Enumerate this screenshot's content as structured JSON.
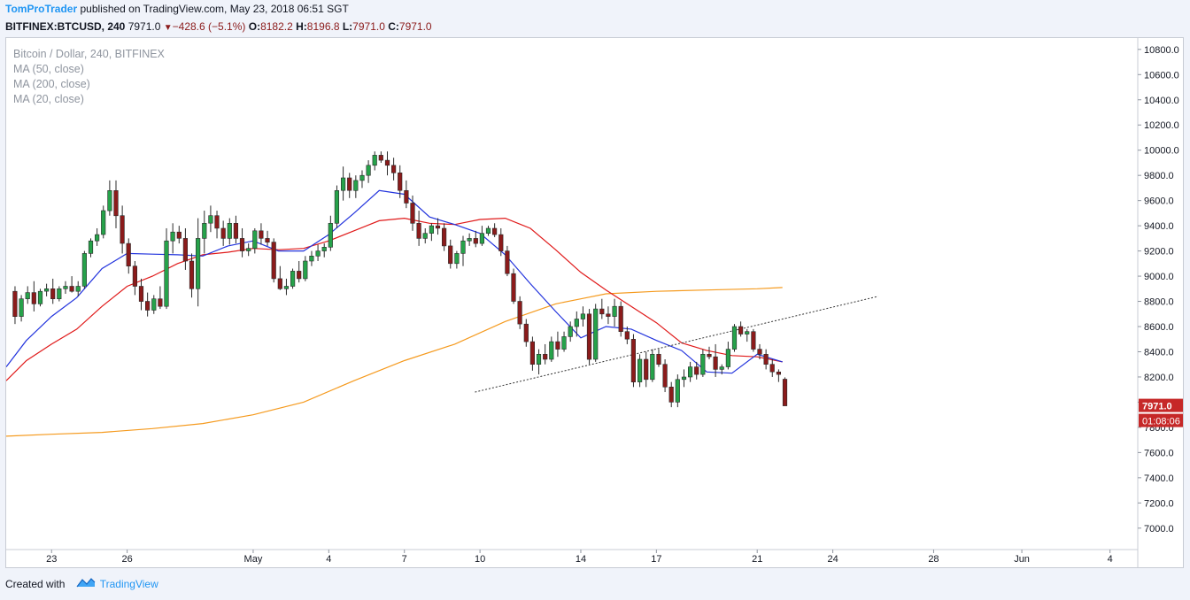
{
  "header": {
    "author": "TomProTrader",
    "published_text": " published on TradingView.com, May 23, 2018 06:51 SGT"
  },
  "quote": {
    "symbol": "BITFINEX:BTCUSD, 240",
    "last": "7971.0",
    "change": "−428.6 (−5.1%)",
    "o_label": "O:",
    "o_value": "8182.2",
    "h_label": "H:",
    "h_value": "8196.8",
    "l_label": "L:",
    "l_value": "7971.0",
    "c_label": "C:",
    "c_value": "7971.0",
    "down_arrow_icon": "triangle-down-icon"
  },
  "legend": {
    "title": "Bitcoin / Dollar, 240, BITFINEX",
    "ma50": "MA (50, close)",
    "ma200": "MA (200, close)",
    "ma20": "MA (20, close)"
  },
  "badges": {
    "price": "7971.0",
    "countdown": "01:08:06"
  },
  "footer": {
    "created_with": "Created with",
    "brand": "TradingView",
    "logo_icon": "tradingview-cloud-icon"
  },
  "colors": {
    "up": "#26a24a",
    "down": "#8b1b1b",
    "ma20": "#2233dd",
    "ma50": "#e01a1a",
    "ma200": "#f59a1e",
    "badge": "#c62828",
    "brand": "#2196f3"
  },
  "chart_data": {
    "type": "candlestick",
    "title": "Bitcoin / Dollar, 240, BITFINEX",
    "x_range": [
      -0.3,
      44.6
    ],
    "y_range": [
      6830,
      10890
    ],
    "y_ticks": [
      7000,
      7200,
      7400,
      7600,
      7800,
      8000,
      8200,
      8400,
      8600,
      8800,
      9000,
      9200,
      9400,
      9600,
      9800,
      10000,
      10200,
      10400,
      10600,
      10800
    ],
    "y_tick_labels": [
      "7000.0",
      "7200.0",
      "7400.0",
      "7600.0",
      "7800.0",
      "8000.0",
      "8200.0",
      "8400.0",
      "8600.0",
      "8800.0",
      "9000.0",
      "9200.0",
      "9400.0",
      "9600.0",
      "9800.0",
      "10000.0",
      "10200.0",
      "10400.0",
      "10600.0",
      "10800.0"
    ],
    "x_ticks": [
      {
        "label": "23",
        "x": 1.5
      },
      {
        "label": "26",
        "x": 4.5
      },
      {
        "label": "May",
        "x": 9.5
      },
      {
        "label": "4",
        "x": 12.5
      },
      {
        "label": "7",
        "x": 15.5
      },
      {
        "label": "10",
        "x": 18.5
      },
      {
        "label": "14",
        "x": 22.5
      },
      {
        "label": "17",
        "x": 25.5
      },
      {
        "label": "21",
        "x": 29.5
      },
      {
        "label": "24",
        "x": 32.5
      },
      {
        "label": "28",
        "x": 36.5
      },
      {
        "label": "Jun",
        "x": 40
      },
      {
        "label": "4",
        "x": 43.5
      }
    ],
    "candles": [
      [
        8880,
        8920,
        8620,
        8680
      ],
      [
        8680,
        8850,
        8640,
        8820
      ],
      [
        8820,
        8920,
        8780,
        8870
      ],
      [
        8870,
        8960,
        8720,
        8780
      ],
      [
        8780,
        8900,
        8760,
        8880
      ],
      [
        8880,
        8940,
        8840,
        8900
      ],
      [
        8900,
        8980,
        8780,
        8820
      ],
      [
        8820,
        8920,
        8800,
        8900
      ],
      [
        8900,
        8960,
        8860,
        8920
      ],
      [
        8920,
        9000,
        8870,
        8880
      ],
      [
        8880,
        8960,
        8840,
        8920
      ],
      [
        8920,
        9200,
        8900,
        9180
      ],
      [
        9180,
        9300,
        9150,
        9280
      ],
      [
        9280,
        9380,
        9240,
        9330
      ],
      [
        9330,
        9560,
        9300,
        9520
      ],
      [
        9520,
        9760,
        9480,
        9680
      ],
      [
        9680,
        9760,
        9380,
        9480
      ],
      [
        9480,
        9560,
        9180,
        9260
      ],
      [
        9260,
        9300,
        9020,
        9080
      ],
      [
        9080,
        9120,
        8850,
        8920
      ],
      [
        8920,
        8980,
        8730,
        8800
      ],
      [
        8800,
        8870,
        8680,
        8730
      ],
      [
        8730,
        8850,
        8700,
        8820
      ],
      [
        8820,
        8920,
        8740,
        8760
      ],
      [
        8760,
        9380,
        8740,
        9280
      ],
      [
        9280,
        9420,
        9180,
        9350
      ],
      [
        9350,
        9400,
        9260,
        9300
      ],
      [
        9300,
        9380,
        9050,
        9120
      ],
      [
        9120,
        9180,
        8830,
        8900
      ],
      [
        8900,
        9460,
        8760,
        9300
      ],
      [
        9300,
        9520,
        9180,
        9420
      ],
      [
        9420,
        9560,
        9350,
        9480
      ],
      [
        9480,
        9520,
        9300,
        9380
      ],
      [
        9380,
        9440,
        9240,
        9300
      ],
      [
        9300,
        9460,
        9250,
        9420
      ],
      [
        9420,
        9480,
        9260,
        9300
      ],
      [
        9300,
        9380,
        9150,
        9200
      ],
      [
        9200,
        9260,
        9160,
        9220
      ],
      [
        9220,
        9380,
        9180,
        9360
      ],
      [
        9360,
        9420,
        9250,
        9300
      ],
      [
        9300,
        9360,
        9240,
        9270
      ],
      [
        9270,
        9300,
        8950,
        8980
      ],
      [
        8980,
        9080,
        8890,
        8900
      ],
      [
        8900,
        8980,
        8850,
        8920
      ],
      [
        8920,
        9060,
        8900,
        9040
      ],
      [
        9040,
        9120,
        8950,
        8980
      ],
      [
        8980,
        9160,
        8960,
        9120
      ],
      [
        9120,
        9200,
        9080,
        9160
      ],
      [
        9160,
        9250,
        9120,
        9200
      ],
      [
        9200,
        9260,
        9150,
        9230
      ],
      [
        9230,
        9480,
        9200,
        9420
      ],
      [
        9420,
        9720,
        9380,
        9680
      ],
      [
        9680,
        9870,
        9600,
        9780
      ],
      [
        9780,
        9820,
        9620,
        9680
      ],
      [
        9680,
        9800,
        9620,
        9760
      ],
      [
        9760,
        9840,
        9700,
        9800
      ],
      [
        9800,
        9920,
        9740,
        9880
      ],
      [
        9880,
        9990,
        9840,
        9960
      ],
      [
        9960,
        9990,
        9900,
        9920
      ],
      [
        9920,
        9990,
        9800,
        9880
      ],
      [
        9880,
        9940,
        9760,
        9820
      ],
      [
        9820,
        9880,
        9620,
        9680
      ],
      [
        9680,
        9760,
        9540,
        9580
      ],
      [
        9580,
        9640,
        9360,
        9420
      ],
      [
        9420,
        9520,
        9240,
        9300
      ],
      [
        9300,
        9380,
        9260,
        9340
      ],
      [
        9340,
        9420,
        9280,
        9400
      ],
      [
        9400,
        9460,
        9330,
        9380
      ],
      [
        9380,
        9420,
        9200,
        9240
      ],
      [
        9240,
        9290,
        9060,
        9100
      ],
      [
        9100,
        9200,
        9060,
        9180
      ],
      [
        9180,
        9320,
        9080,
        9280
      ],
      [
        9280,
        9340,
        9240,
        9300
      ],
      [
        9300,
        9360,
        9230,
        9260
      ],
      [
        9260,
        9400,
        9240,
        9340
      ],
      [
        9340,
        9400,
        9320,
        9380
      ],
      [
        9380,
        9420,
        9310,
        9330
      ],
      [
        9330,
        9380,
        9160,
        9200
      ],
      [
        9200,
        9240,
        9000,
        9020
      ],
      [
        9020,
        9060,
        8780,
        8800
      ],
      [
        8800,
        8840,
        8580,
        8620
      ],
      [
        8620,
        8660,
        8440,
        8480
      ],
      [
        8480,
        8520,
        8250,
        8300
      ],
      [
        8300,
        8420,
        8220,
        8380
      ],
      [
        8380,
        8460,
        8300,
        8340
      ],
      [
        8340,
        8520,
        8320,
        8480
      ],
      [
        8480,
        8560,
        8360,
        8420
      ],
      [
        8420,
        8560,
        8400,
        8520
      ],
      [
        8520,
        8640,
        8480,
        8600
      ],
      [
        8600,
        8720,
        8520,
        8660
      ],
      [
        8660,
        8760,
        8600,
        8700
      ],
      [
        8700,
        8740,
        8300,
        8340
      ],
      [
        8340,
        8780,
        8320,
        8740
      ],
      [
        8740,
        8820,
        8660,
        8700
      ],
      [
        8700,
        8760,
        8620,
        8680
      ],
      [
        8680,
        8820,
        8600,
        8760
      ],
      [
        8760,
        8800,
        8520,
        8560
      ],
      [
        8560,
        8600,
        8460,
        8500
      ],
      [
        8500,
        8540,
        8120,
        8160
      ],
      [
        8160,
        8380,
        8120,
        8340
      ],
      [
        8340,
        8400,
        8120,
        8180
      ],
      [
        8180,
        8420,
        8160,
        8380
      ],
      [
        8380,
        8420,
        8280,
        8300
      ],
      [
        8300,
        8340,
        8080,
        8120
      ],
      [
        8120,
        8160,
        7960,
        8000
      ],
      [
        8000,
        8220,
        7960,
        8180
      ],
      [
        8180,
        8260,
        8120,
        8200
      ],
      [
        8200,
        8320,
        8160,
        8280
      ],
      [
        8280,
        8320,
        8180,
        8220
      ],
      [
        8220,
        8420,
        8200,
        8380
      ],
      [
        8380,
        8440,
        8340,
        8360
      ],
      [
        8360,
        8460,
        8200,
        8260
      ],
      [
        8260,
        8300,
        8220,
        8280
      ],
      [
        8280,
        8480,
        8260,
        8420
      ],
      [
        8420,
        8620,
        8400,
        8600
      ],
      [
        8600,
        8640,
        8520,
        8540
      ],
      [
        8540,
        8580,
        8480,
        8560
      ],
      [
        8560,
        8580,
        8400,
        8420
      ],
      [
        8420,
        8460,
        8340,
        8380
      ],
      [
        8380,
        8420,
        8260,
        8300
      ],
      [
        8300,
        8340,
        8200,
        8240
      ],
      [
        8240,
        8260,
        8160,
        8220
      ],
      [
        8182.2,
        8196.8,
        7971.0,
        7971.0
      ]
    ],
    "ma20": [
      [
        -0.3,
        8280
      ],
      [
        0.5,
        8490
      ],
      [
        1.5,
        8680
      ],
      [
        2.5,
        8830
      ],
      [
        3.5,
        9060
      ],
      [
        4.5,
        9180
      ],
      [
        5.5,
        9175
      ],
      [
        6.5,
        9170
      ],
      [
        7.5,
        9160
      ],
      [
        8.5,
        9240
      ],
      [
        9.5,
        9280
      ],
      [
        10.5,
        9200
      ],
      [
        11.5,
        9200
      ],
      [
        12.5,
        9330
      ],
      [
        13.5,
        9500
      ],
      [
        14.5,
        9680
      ],
      [
        15.5,
        9650
      ],
      [
        16.5,
        9470
      ],
      [
        17.5,
        9410
      ],
      [
        18.5,
        9340
      ],
      [
        19.5,
        9170
      ],
      [
        20.5,
        8940
      ],
      [
        21.5,
        8720
      ],
      [
        22.5,
        8510
      ],
      [
        23.5,
        8600
      ],
      [
        24.5,
        8580
      ],
      [
        25.5,
        8490
      ],
      [
        26.5,
        8410
      ],
      [
        27.5,
        8240
      ],
      [
        28.5,
        8230
      ],
      [
        29.5,
        8380
      ],
      [
        30.5,
        8320
      ]
    ],
    "ma50": [
      [
        -0.3,
        8170
      ],
      [
        0.5,
        8330
      ],
      [
        1.5,
        8460
      ],
      [
        2.5,
        8580
      ],
      [
        3.5,
        8760
      ],
      [
        4.5,
        8920
      ],
      [
        5.5,
        9000
      ],
      [
        6.5,
        9100
      ],
      [
        7.5,
        9170
      ],
      [
        8.5,
        9190
      ],
      [
        9.5,
        9220
      ],
      [
        10.5,
        9210
      ],
      [
        11.5,
        9220
      ],
      [
        12.5,
        9280
      ],
      [
        13.5,
        9360
      ],
      [
        14.5,
        9440
      ],
      [
        15.5,
        9460
      ],
      [
        16.5,
        9420
      ],
      [
        17.5,
        9410
      ],
      [
        18.5,
        9450
      ],
      [
        19.5,
        9460
      ],
      [
        20.5,
        9380
      ],
      [
        21.5,
        9210
      ],
      [
        22.5,
        9030
      ],
      [
        23.5,
        8890
      ],
      [
        24.5,
        8760
      ],
      [
        25.5,
        8630
      ],
      [
        26.5,
        8470
      ],
      [
        27.5,
        8410
      ],
      [
        28.5,
        8370
      ],
      [
        29.5,
        8360
      ],
      [
        30.5,
        8320
      ]
    ],
    "ma200": [
      [
        -0.3,
        7730
      ],
      [
        1.5,
        7745
      ],
      [
        3.5,
        7760
      ],
      [
        5.5,
        7790
      ],
      [
        7.5,
        7830
      ],
      [
        9.5,
        7900
      ],
      [
        11.5,
        8000
      ],
      [
        13.5,
        8170
      ],
      [
        15.5,
        8330
      ],
      [
        17.5,
        8460
      ],
      [
        19.5,
        8640
      ],
      [
        21.5,
        8780
      ],
      [
        22.5,
        8820
      ],
      [
        23.5,
        8860
      ],
      [
        25.5,
        8880
      ],
      [
        27.5,
        8890
      ],
      [
        29.5,
        8900
      ],
      [
        30.5,
        8910
      ]
    ],
    "trendline": {
      "x1": 18.3,
      "y1": 8080,
      "x2": 34.3,
      "y2": 8840
    }
  }
}
